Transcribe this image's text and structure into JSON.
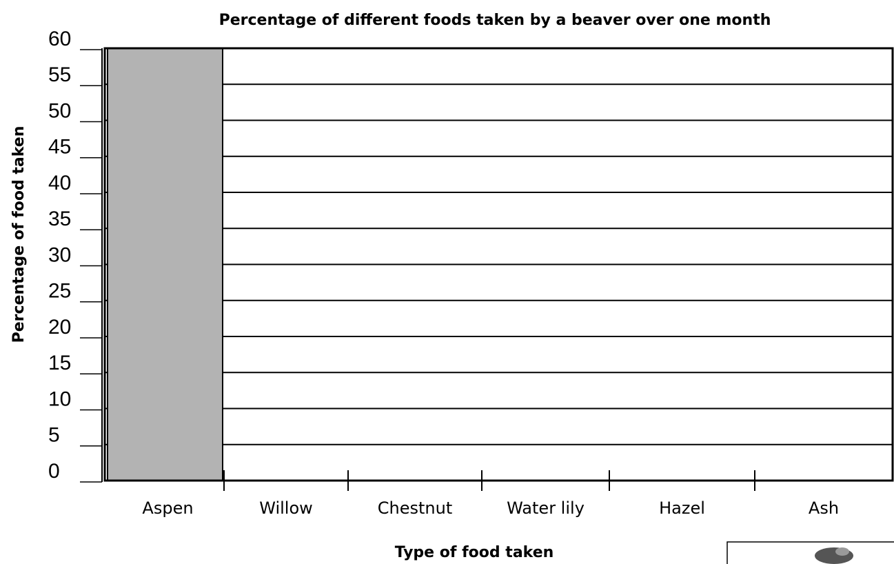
{
  "chart_data": {
    "type": "bar",
    "title": "Percentage of different foods taken by a beaver over one month",
    "x_label": "Type of food taken",
    "y_label": "Percentage of food taken",
    "categories": [
      "Aspen",
      "Willow",
      "Chestnut",
      "Water lily",
      "Hazel",
      "Ash"
    ],
    "values": [
      60,
      null,
      null,
      null,
      null,
      null
    ],
    "color": "#b3b3b3",
    "ylim": [
      0,
      60
    ],
    "yticks": [
      0,
      5,
      10,
      15,
      20,
      25,
      30,
      35,
      40,
      45,
      50,
      55,
      60
    ],
    "grid": true
  }
}
